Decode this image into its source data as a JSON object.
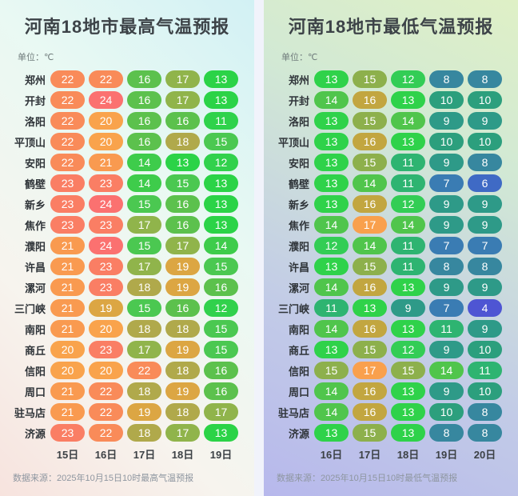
{
  "chart_data": [
    {
      "type": "heatmap",
      "title": "河南18地市最高气温预报",
      "unit": "单位：℃",
      "columns": [
        "15日",
        "16日",
        "17日",
        "18日",
        "19日"
      ],
      "rows": [
        "郑州",
        "开封",
        "洛阳",
        "平顶山",
        "安阳",
        "鹤壁",
        "新乡",
        "焦作",
        "濮阳",
        "许昌",
        "漯河",
        "三门峡",
        "南阳",
        "商丘",
        "信阳",
        "周口",
        "驻马店",
        "济源"
      ],
      "values": [
        [
          22,
          22,
          16,
          17,
          13
        ],
        [
          22,
          24,
          16,
          17,
          13
        ],
        [
          22,
          20,
          16,
          16,
          11
        ],
        [
          22,
          20,
          16,
          18,
          15
        ],
        [
          22,
          21,
          14,
          13,
          12
        ],
        [
          23,
          23,
          14,
          15,
          13
        ],
        [
          23,
          24,
          15,
          16,
          13
        ],
        [
          23,
          23,
          17,
          16,
          13
        ],
        [
          21,
          24,
          15,
          17,
          14
        ],
        [
          21,
          23,
          17,
          19,
          15
        ],
        [
          21,
          23,
          18,
          19,
          16
        ],
        [
          21,
          19,
          15,
          16,
          12
        ],
        [
          21,
          20,
          18,
          18,
          15
        ],
        [
          20,
          23,
          17,
          19,
          15
        ],
        [
          20,
          20,
          22,
          18,
          16
        ],
        [
          21,
          22,
          18,
          19,
          16
        ],
        [
          21,
          22,
          19,
          18,
          17
        ],
        [
          23,
          22,
          18,
          17,
          13
        ]
      ],
      "color_map": {
        "11": "#2FD24B",
        "12": "#31D14C",
        "13": "#2BD347",
        "14": "#3ECC4B",
        "15": "#4BC851",
        "16": "#5CC14D",
        "17": "#90B44B",
        "18": "#B0A94B",
        "19": "#DCA643",
        "20": "#F9A34C",
        "21": "#F99A50",
        "22": "#F98B59",
        "23": "#FA7E64",
        "24": "#FB7170"
      },
      "source": "数据来源：2025年10月15日10时最高气温预报"
    },
    {
      "type": "heatmap",
      "title": "河南18地市最低气温预报",
      "unit": "单位：℃",
      "columns": [
        "16日",
        "17日",
        "18日",
        "19日",
        "20日"
      ],
      "rows": [
        "郑州",
        "开封",
        "洛阳",
        "平顶山",
        "安阳",
        "鹤壁",
        "新乡",
        "焦作",
        "濮阳",
        "许昌",
        "漯河",
        "三门峡",
        "南阳",
        "商丘",
        "信阳",
        "周口",
        "驻马店",
        "济源"
      ],
      "values": [
        [
          13,
          15,
          12,
          8,
          8
        ],
        [
          14,
          16,
          13,
          10,
          10
        ],
        [
          13,
          15,
          14,
          9,
          9
        ],
        [
          13,
          16,
          13,
          10,
          10
        ],
        [
          13,
          15,
          11,
          9,
          8
        ],
        [
          13,
          14,
          11,
          7,
          6
        ],
        [
          13,
          16,
          12,
          9,
          9
        ],
        [
          14,
          17,
          14,
          9,
          9
        ],
        [
          12,
          14,
          11,
          7,
          7
        ],
        [
          13,
          15,
          11,
          8,
          8
        ],
        [
          14,
          16,
          13,
          9,
          9
        ],
        [
          11,
          13,
          9,
          7,
          4
        ],
        [
          14,
          16,
          13,
          11,
          9
        ],
        [
          13,
          15,
          12,
          9,
          10
        ],
        [
          15,
          17,
          15,
          14,
          11
        ],
        [
          14,
          16,
          13,
          9,
          10
        ],
        [
          14,
          16,
          13,
          10,
          8
        ],
        [
          13,
          15,
          13,
          8,
          8
        ]
      ],
      "color_map": {
        "4": "#4E55D3",
        "6": "#3F6AC5",
        "7": "#3A7CB3",
        "8": "#37879F",
        "9": "#2E9A88",
        "10": "#2C9F7D",
        "11": "#2EB471",
        "12": "#33CD55",
        "13": "#2FD24A",
        "14": "#50C54C",
        "15": "#8DB04C",
        "16": "#C2A640",
        "17": "#F9A04D"
      },
      "source": "数据来源：2025年10月15日10时最低气温预报"
    }
  ]
}
